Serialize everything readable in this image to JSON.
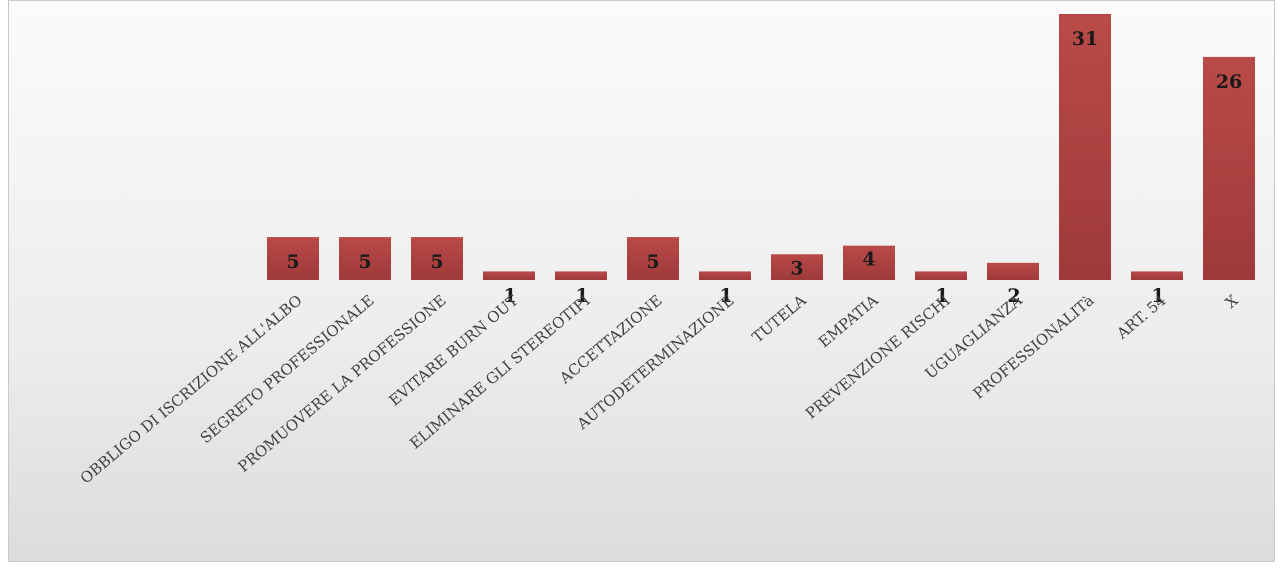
{
  "chart_data": {
    "type": "bar",
    "categories": [
      "OBBLIGO DI ISCRIZIONE ALL'ALBO",
      "SEGRETO PROFESSIONALE",
      "PROMUOVERE LA PROFESSIONE",
      "EVITARE BURN OUT",
      "ELIMINARE GLI STEREOTIPI",
      "ACCETTAZIONE",
      "AUTODETERMINAZIONE",
      "TUTELA",
      "EMPATIA",
      "PREVENZIONE RISCHI",
      "UGUAGLIANZA",
      "PROFESSIONALITà",
      "ART. 54",
      "X"
    ],
    "values": [
      5,
      5,
      5,
      1,
      1,
      5,
      1,
      3,
      4,
      1,
      2,
      31,
      1,
      26
    ],
    "value_labels": [
      "5",
      "5",
      "5",
      "1",
      "1",
      "5",
      "1",
      "3",
      "4",
      "1",
      "2",
      "31",
      "1",
      "26"
    ],
    "title": "",
    "xlabel": "",
    "ylabel": "",
    "ylim": [
      0,
      31
    ],
    "grid": false,
    "legend": "none",
    "bar_color": "#b94a48",
    "bar_color_dark": "#9e3a39"
  }
}
